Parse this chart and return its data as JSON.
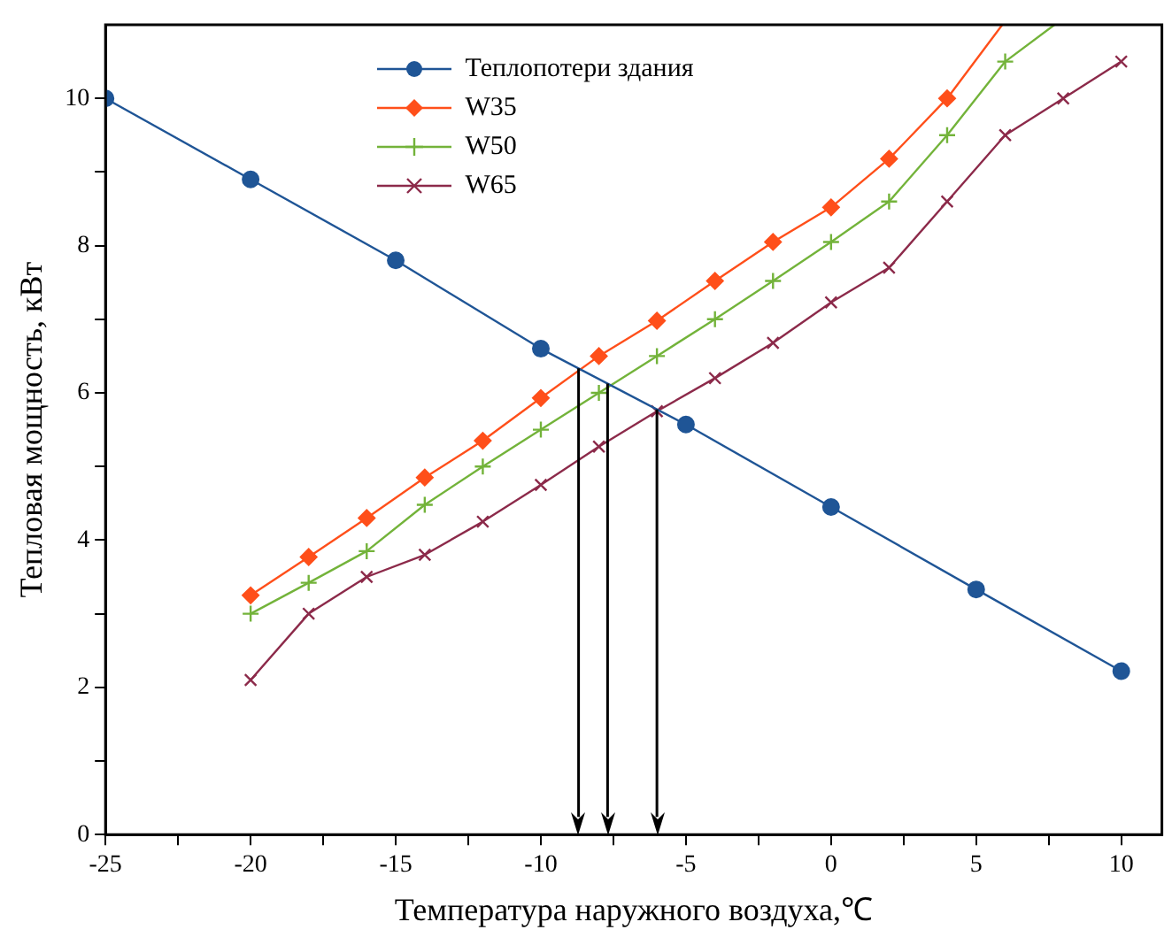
{
  "chart_data": {
    "type": "line",
    "xlabel": "Температура наружного воздуха,℃",
    "ylabel": "Тепловая мощность, кВт",
    "xlim": [
      -25,
      11.4
    ],
    "ylim": [
      0,
      11
    ],
    "xticks": [
      -25,
      {
        "value": -22.5,
        "label": null
      },
      -20,
      {
        "value": -17.5,
        "label": null
      },
      -15,
      {
        "value": -12.5,
        "label": null
      },
      -10,
      {
        "value": -7.5,
        "label": null
      },
      -5,
      {
        "value": -2.5,
        "label": null
      },
      0,
      {
        "value": 2.5,
        "label": null
      },
      5,
      {
        "value": 7.5,
        "label": null
      },
      10
    ],
    "yticks": [
      0,
      {
        "value": 1,
        "label": null
      },
      2,
      {
        "value": 3,
        "label": null
      },
      4,
      {
        "value": 5,
        "label": null
      },
      6,
      {
        "value": 7,
        "label": null
      },
      8,
      {
        "value": 9,
        "label": null
      },
      10
    ],
    "grid": false,
    "legend": "top",
    "line_style": "solid",
    "series": [
      {
        "name": "Теплопотери здания",
        "color": "#1f5596",
        "marker": "circle",
        "x": [
          -25,
          -20,
          -15,
          -10,
          -5,
          0,
          5,
          10
        ],
        "values": [
          10,
          8.9,
          7.8,
          6.6,
          5.57,
          4.45,
          3.33,
          2.22
        ]
      },
      {
        "name": "W35",
        "color": "#ff4f1a",
        "marker": "diamond",
        "x": [
          -20,
          -18,
          -16,
          -14,
          -12,
          -10,
          -8,
          -6,
          -4,
          -2,
          0,
          2,
          4,
          5.9
        ],
        "values": [
          3.25,
          3.77,
          4.3,
          4.85,
          5.35,
          5.93,
          6.5,
          6.98,
          7.52,
          8.05,
          8.52,
          9.18,
          10.0,
          11
        ]
      },
      {
        "name": "W50",
        "color": "#73b33a",
        "marker": "cross",
        "x": [
          -20,
          -18,
          -16,
          -14,
          -12,
          -10,
          -8,
          -6,
          -4,
          -2,
          0,
          2,
          4,
          6,
          7.7
        ],
        "values": [
          3.0,
          3.42,
          3.85,
          4.48,
          5.0,
          5.5,
          6.0,
          6.5,
          7.0,
          7.52,
          8.05,
          8.6,
          9.5,
          10.5,
          11
        ]
      },
      {
        "name": "W65",
        "color": "#8c2a4a",
        "marker": "x",
        "x": [
          -20,
          -18,
          -16,
          -14,
          -12,
          -10,
          -8,
          -6,
          -4,
          -2,
          0,
          2,
          4,
          6,
          8,
          10
        ],
        "values": [
          2.1,
          3.0,
          3.5,
          3.8,
          4.25,
          4.75,
          5.27,
          5.75,
          6.2,
          6.68,
          7.23,
          7.7,
          8.6,
          9.5,
          10.0,
          10.5
        ]
      }
    ],
    "ref_lines": [
      {
        "axis": "x",
        "value": -8.7,
        "color": "#000000"
      },
      {
        "axis": "x",
        "value": -7.7,
        "color": "#000000"
      },
      {
        "axis": "x",
        "value": -6.0,
        "color": "#000000"
      }
    ]
  }
}
